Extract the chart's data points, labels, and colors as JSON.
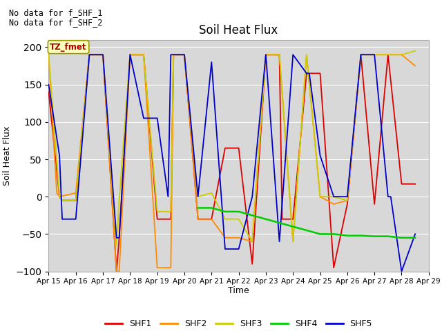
{
  "title": "Soil Heat Flux",
  "ylabel": "Soil Heat Flux",
  "xlabel": "Time",
  "ylim": [
    -100,
    210
  ],
  "yticks": [
    -100,
    -50,
    0,
    50,
    100,
    150,
    200
  ],
  "note1": "No data for f_SHF_1",
  "note2": "No data for f_SHF_2",
  "tz_label": "TZ_fmet",
  "bg_color": "#d8d8d8",
  "fig_color": "#ffffff",
  "legend_labels": [
    "SHF1",
    "SHF2",
    "SHF3",
    "SHF4",
    "SHF5"
  ],
  "legend_colors": [
    "#dd0000",
    "#ff8c00",
    "#cccc00",
    "#00cc00",
    "#0000cc"
  ],
  "shf1_x": [
    15,
    15.4,
    15.5,
    16.0,
    16.5,
    17.0,
    17.5,
    17.6,
    18.0,
    18.5,
    19.0,
    19.5,
    19.6,
    20.0,
    20.5,
    21.0,
    21.5,
    22.0,
    22.5,
    23.0,
    23.5,
    23.6,
    24.0,
    24.5,
    25.0,
    25.5,
    26.0,
    26.5,
    27.0,
    27.5,
    28.0,
    28.5
  ],
  "shf1_y": [
    140,
    0,
    -5,
    -5,
    190,
    190,
    -100,
    -55,
    190,
    190,
    -30,
    -30,
    190,
    190,
    -30,
    -30,
    65,
    65,
    -90,
    190,
    190,
    -30,
    -30,
    165,
    165,
    -95,
    -10,
    190,
    -10,
    190,
    17,
    17
  ],
  "shf2_x": [
    15,
    15.3,
    15.4,
    16.0,
    16.5,
    17.0,
    17.5,
    17.6,
    18.0,
    18.5,
    19.0,
    19.5,
    19.6,
    20.0,
    20.5,
    21.0,
    21.5,
    22.0,
    22.5,
    23.0,
    23.5,
    24.0,
    24.5,
    25.0,
    25.5,
    26.0,
    26.5,
    27.0,
    27.5,
    28.0,
    28.5
  ],
  "shf2_y": [
    190,
    5,
    0,
    5,
    190,
    190,
    -100,
    -100,
    190,
    190,
    -95,
    -95,
    190,
    190,
    -30,
    -30,
    -55,
    -55,
    -60,
    190,
    190,
    -60,
    190,
    0,
    -10,
    -5,
    190,
    190,
    190,
    190,
    175
  ],
  "shf3_x": [
    15,
    15.4,
    15.5,
    16.0,
    16.5,
    17.0,
    17.5,
    17.6,
    18.0,
    18.5,
    19.0,
    19.5,
    19.6,
    20.0,
    20.5,
    21.0,
    21.5,
    22.0,
    22.5,
    23.0,
    23.5,
    24.0,
    24.5,
    25.0,
    25.5,
    26.0,
    26.5,
    27.0,
    27.5,
    28.0,
    28.5
  ],
  "shf3_y": [
    190,
    0,
    -5,
    -5,
    190,
    190,
    -65,
    -5,
    190,
    190,
    -20,
    -20,
    190,
    190,
    0,
    5,
    -30,
    -30,
    -60,
    190,
    190,
    -60,
    190,
    0,
    0,
    -5,
    190,
    190,
    190,
    190,
    195
  ],
  "shf4_x": [
    20.5,
    21.0,
    21.5,
    22.0,
    22.5,
    23.0,
    23.5,
    24.0,
    24.5,
    25.0,
    25.5,
    26.0,
    26.5,
    27.0,
    27.5,
    28.0,
    28.5
  ],
  "shf4_y": [
    -15,
    -15,
    -20,
    -20,
    -25,
    -30,
    -35,
    -40,
    -45,
    -50,
    -50,
    -52,
    -52,
    -53,
    -53,
    -55,
    -55
  ],
  "shf5_x": [
    15,
    15.4,
    15.5,
    16.0,
    16.5,
    17.0,
    17.5,
    17.6,
    18.0,
    18.5,
    19.0,
    19.4,
    19.5,
    20.0,
    20.5,
    21.0,
    21.5,
    22.0,
    22.5,
    23.0,
    23.5,
    24.0,
    24.5,
    24.6,
    25.0,
    25.5,
    26.0,
    26.5,
    27.0,
    27.5,
    27.6,
    28.0,
    28.5
  ],
  "shf5_y": [
    150,
    55,
    -30,
    -30,
    190,
    190,
    -55,
    -55,
    190,
    105,
    105,
    0,
    190,
    190,
    0,
    180,
    -70,
    -70,
    0,
    190,
    -60,
    190,
    165,
    165,
    55,
    0,
    0,
    190,
    190,
    0,
    0,
    -100,
    -50
  ]
}
